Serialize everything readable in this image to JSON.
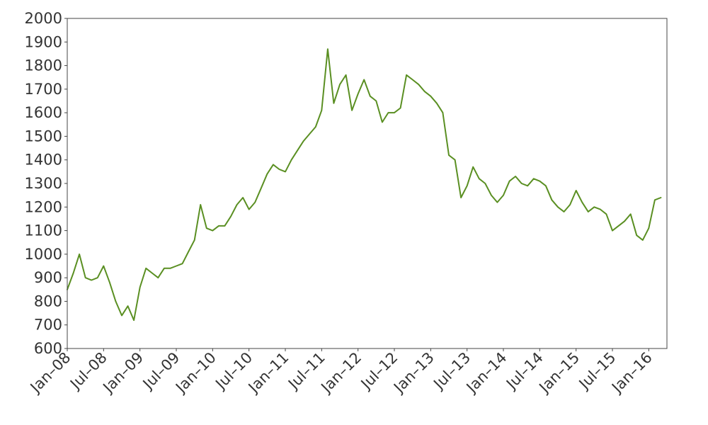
{
  "chart_data": {
    "type": "line",
    "title": "",
    "xlabel": "",
    "ylabel": "",
    "grid": false,
    "legend": "none",
    "ylim": [
      600,
      2000
    ],
    "xlim": [
      "2008-01",
      "2016-04"
    ],
    "x_tick_labels": [
      "Jan–08",
      "Jul–08",
      "Jan–09",
      "Jul–09",
      "Jan–10",
      "Jul–10",
      "Jan–11",
      "Jul–11",
      "Jan–12",
      "Jul–12",
      "Jan–13",
      "Jul–13",
      "Jan–14",
      "Jul–14",
      "Jan–15",
      "Jul–15",
      "Jan–16"
    ],
    "y_ticks": [
      600,
      700,
      800,
      900,
      1000,
      1100,
      1200,
      1300,
      1400,
      1500,
      1600,
      1700,
      1800,
      1900,
      2000
    ],
    "colors": {
      "line": "#5a8f22",
      "axis": "#444444",
      "text": "#333333"
    },
    "series": [
      {
        "x": [
          "2008-01",
          "2008-02",
          "2008-03",
          "2008-04",
          "2008-05",
          "2008-06",
          "2008-07",
          "2008-08",
          "2008-09",
          "2008-10",
          "2008-11",
          "2008-12",
          "2009-01",
          "2009-02",
          "2009-03",
          "2009-04",
          "2009-05",
          "2009-06",
          "2009-07",
          "2009-08",
          "2009-09",
          "2009-10",
          "2009-11",
          "2009-12",
          "2010-01",
          "2010-02",
          "2010-03",
          "2010-04",
          "2010-05",
          "2010-06",
          "2010-07",
          "2010-08",
          "2010-09",
          "2010-10",
          "2010-11",
          "2010-12",
          "2011-01",
          "2011-02",
          "2011-03",
          "2011-04",
          "2011-05",
          "2011-06",
          "2011-07",
          "2011-08",
          "2011-09",
          "2011-10",
          "2011-11",
          "2011-12",
          "2012-01",
          "2012-02",
          "2012-03",
          "2012-04",
          "2012-05",
          "2012-06",
          "2012-07",
          "2012-08",
          "2012-09",
          "2012-10",
          "2012-11",
          "2012-12",
          "2013-01",
          "2013-02",
          "2013-03",
          "2013-04",
          "2013-05",
          "2013-06",
          "2013-07",
          "2013-08",
          "2013-09",
          "2013-10",
          "2013-11",
          "2013-12",
          "2014-01",
          "2014-02",
          "2014-03",
          "2014-04",
          "2014-05",
          "2014-06",
          "2014-07",
          "2014-08",
          "2014-09",
          "2014-10",
          "2014-11",
          "2014-12",
          "2015-01",
          "2015-02",
          "2015-03",
          "2015-04",
          "2015-05",
          "2015-06",
          "2015-07",
          "2015-08",
          "2015-09",
          "2015-10",
          "2015-11",
          "2015-12",
          "2016-01",
          "2016-02",
          "2016-03"
        ],
        "values": [
          850,
          920,
          1000,
          900,
          890,
          900,
          950,
          880,
          800,
          740,
          780,
          720,
          860,
          940,
          920,
          900,
          940,
          940,
          950,
          960,
          1010,
          1060,
          1210,
          1110,
          1100,
          1120,
          1120,
          1160,
          1210,
          1240,
          1190,
          1220,
          1280,
          1340,
          1380,
          1360,
          1350,
          1400,
          1440,
          1480,
          1510,
          1540,
          1610,
          1870,
          1640,
          1720,
          1760,
          1610,
          1680,
          1740,
          1670,
          1650,
          1560,
          1600,
          1600,
          1620,
          1760,
          1740,
          1720,
          1690,
          1670,
          1640,
          1600,
          1420,
          1400,
          1240,
          1290,
          1370,
          1320,
          1300,
          1250,
          1220,
          1250,
          1310,
          1330,
          1300,
          1290,
          1320,
          1310,
          1290,
          1230,
          1200,
          1180,
          1210,
          1270,
          1220,
          1180,
          1200,
          1190,
          1170,
          1100,
          1120,
          1140,
          1170,
          1080,
          1060,
          1110,
          1230,
          1240
        ]
      }
    ]
  }
}
